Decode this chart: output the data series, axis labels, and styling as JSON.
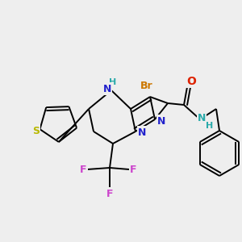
{
  "bg_color": "#eeeeee",
  "bond_color": "#000000",
  "atom_colors": {
    "S": "#b8b800",
    "N": "#2222cc",
    "Br": "#cc7700",
    "O": "#dd2200",
    "F": "#cc44cc",
    "NH": "#2aaaaa"
  },
  "lw": 1.4
}
